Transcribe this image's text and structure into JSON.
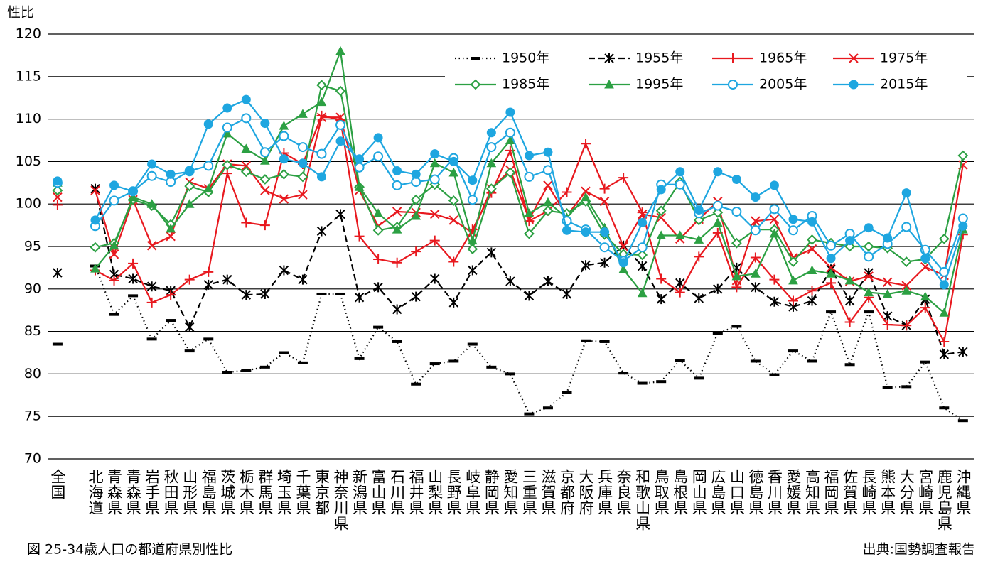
{
  "chart_data": {
    "type": "line",
    "ylabel": "性比",
    "caption": "図 25-34歳人口の都道府県別性比",
    "source": "出典:国勢調査報告",
    "categories": [
      "全国",
      null,
      "北海道",
      "青森県",
      "青森県",
      "岩手県",
      "秋田県",
      "山形県",
      "福島県",
      "茨城県",
      "栃木県",
      "群馬県",
      "埼玉県",
      "千葉県",
      "東京都",
      "神奈川県",
      "新潟県",
      "富山県",
      "石川県",
      "福井県",
      "山梨県",
      "長野県",
      "岐阜県",
      "静岡県",
      "愛知県",
      "三重県",
      "滋賀県",
      "京都府",
      "大阪府",
      "兵庫県",
      "奈良県",
      "和歌山県",
      "鳥取県",
      "島根県",
      "岡山県",
      "広島県",
      "山口県",
      "徳島県",
      "香川県",
      "愛媛県",
      "高知県",
      "福岡県",
      "佐賀県",
      "長崎県",
      "熊本県",
      "大分県",
      "宮崎県",
      "鹿児島県",
      "沖縄県"
    ],
    "ylim": [
      70,
      120
    ],
    "yticks": [
      70,
      75,
      80,
      85,
      90,
      95,
      100,
      105,
      110,
      115,
      120
    ],
    "grid": true,
    "legend": "upper right",
    "series": [
      {
        "name": "1950年",
        "color": "#000000",
        "linestyle": "dotted",
        "marker": "dash",
        "values": [
          83.5,
          null,
          92.7,
          87.0,
          89.2,
          84.1,
          86.3,
          82.7,
          84.1,
          80.2,
          80.4,
          80.8,
          82.5,
          81.3,
          89.4,
          89.4,
          81.8,
          85.5,
          83.8,
          78.8,
          81.2,
          81.5,
          83.5,
          80.8,
          80.0,
          75.3,
          76.0,
          77.8,
          83.9,
          83.8,
          80.1,
          78.9,
          79.1,
          81.6,
          79.5,
          84.8,
          85.6,
          81.5,
          79.9,
          82.7,
          81.5,
          87.3,
          81.1,
          87.3,
          78.4,
          78.5,
          81.4,
          76.0,
          74.5
        ]
      },
      {
        "name": "1955年",
        "color": "#000000",
        "linestyle": "dashed",
        "marker": "asterisk",
        "values": [
          91.9,
          null,
          101.8,
          91.7,
          91.2,
          90.3,
          89.8,
          85.5,
          90.5,
          91.1,
          89.3,
          89.4,
          92.2,
          91.1,
          96.8,
          98.8,
          89.0,
          90.2,
          87.6,
          89.1,
          91.2,
          88.4,
          92.2,
          94.3,
          90.9,
          89.2,
          90.9,
          89.4,
          92.8,
          93.1,
          95.1,
          92.7,
          88.8,
          90.7,
          88.9,
          90.0,
          92.5,
          90.2,
          88.5,
          87.9,
          88.6,
          92.3,
          88.6,
          91.9,
          86.8,
          85.7,
          88.8,
          82.3,
          82.6
        ]
      },
      {
        "name": "1965年",
        "color": "#e8191f",
        "linestyle": "solid",
        "marker": "plus",
        "values": [
          99.9,
          null,
          92.2,
          91.0,
          93.0,
          88.4,
          89.3,
          91.1,
          92.0,
          103.6,
          97.8,
          97.5,
          106.0,
          104.7,
          110.4,
          109.9,
          96.2,
          93.5,
          93.1,
          94.4,
          95.7,
          93.2,
          97.0,
          101.3,
          106.3,
          98.0,
          99.2,
          101.4,
          107.1,
          101.8,
          103.1,
          99.0,
          91.2,
          89.6,
          93.8,
          96.6,
          90.2,
          93.7,
          91.1,
          88.6,
          89.8,
          90.7,
          86.1,
          89.0,
          85.8,
          85.7,
          87.8,
          83.8,
          96.4
        ]
      },
      {
        "name": "1975年",
        "color": "#e8191f",
        "linestyle": "solid",
        "marker": "x",
        "values": [
          100.8,
          null,
          101.6,
          94.1,
          100.5,
          95.1,
          96.2,
          102.6,
          101.8,
          104.7,
          104.5,
          101.6,
          100.6,
          101.1,
          110.2,
          110.2,
          101.6,
          97.4,
          99.1,
          99.0,
          98.8,
          98.1,
          96.6,
          101.8,
          104.0,
          98.2,
          102.2,
          98.6,
          101.5,
          100.3,
          95.0,
          98.8,
          98.4,
          95.9,
          98.2,
          100.3,
          91.0,
          98.0,
          98.2,
          93.7,
          94.7,
          92.5,
          90.9,
          91.5,
          90.8,
          90.4,
          92.6,
          91.6,
          104.6
        ]
      },
      {
        "name": "1985年",
        "color": "#2ca043",
        "linestyle": "solid",
        "marker": "diamond-open",
        "values": [
          101.6,
          null,
          94.9,
          95.4,
          100.5,
          99.8,
          97.6,
          102.1,
          101.4,
          104.6,
          103.8,
          102.9,
          103.5,
          103.2,
          114.0,
          113.3,
          102.0,
          96.9,
          97.3,
          100.5,
          102.3,
          100.4,
          94.7,
          101.8,
          103.7,
          96.5,
          99.2,
          98.9,
          100.3,
          96.4,
          94.1,
          94.0,
          99.2,
          102.6,
          98.1,
          99.0,
          95.4,
          97.0,
          97.0,
          93.2,
          95.8,
          95.4,
          95.0,
          95.0,
          94.8,
          93.2,
          93.5,
          95.9,
          105.7
        ]
      },
      {
        "name": "1995年",
        "color": "#2ca043",
        "linestyle": "solid",
        "marker": "triangle",
        "values": [
          102.5,
          null,
          92.4,
          95.1,
          100.8,
          100.0,
          97.1,
          100.0,
          101.8,
          108.3,
          106.5,
          105.1,
          109.2,
          110.6,
          112.0,
          118.0,
          102.0,
          98.9,
          97.0,
          98.6,
          104.8,
          103.7,
          95.7,
          104.8,
          107.5,
          98.9,
          100.2,
          98.4,
          100.8,
          97.2,
          92.3,
          89.5,
          96.3,
          96.3,
          95.8,
          97.8,
          91.5,
          91.8,
          96.5,
          91.0,
          92.2,
          91.8,
          91.0,
          89.6,
          89.4,
          89.8,
          89.1,
          87.2,
          97.0
        ]
      },
      {
        "name": "2005年",
        "color": "#1ea6e0",
        "linestyle": "solid",
        "marker": "circle-open",
        "values": [
          102.5,
          null,
          97.4,
          100.4,
          101.5,
          103.3,
          102.6,
          103.9,
          104.5,
          109.0,
          110.1,
          106.1,
          108.0,
          106.7,
          105.9,
          109.3,
          104.3,
          105.6,
          102.2,
          102.6,
          102.9,
          105.4,
          100.5,
          106.7,
          108.4,
          103.2,
          104.0,
          98.0,
          97.0,
          94.9,
          93.3,
          94.9,
          102.3,
          102.3,
          98.9,
          99.8,
          99.1,
          96.9,
          99.4,
          96.9,
          98.6,
          95.1,
          96.5,
          93.8,
          95.3,
          97.3,
          94.6,
          92.0,
          98.3
        ]
      },
      {
        "name": "2015年",
        "color": "#1ea6e0",
        "linestyle": "solid",
        "marker": "circle",
        "values": [
          102.7,
          null,
          98.1,
          102.2,
          101.5,
          104.7,
          103.5,
          103.8,
          109.4,
          111.3,
          112.3,
          109.5,
          105.3,
          104.8,
          103.2,
          107.4,
          105.3,
          107.8,
          103.9,
          103.5,
          105.9,
          105.0,
          102.8,
          108.4,
          110.8,
          105.7,
          106.1,
          96.9,
          96.7,
          96.7,
          93.1,
          97.8,
          101.7,
          103.8,
          99.3,
          103.8,
          102.9,
          100.8,
          102.2,
          98.2,
          97.9,
          93.6,
          95.7,
          97.2,
          96.0,
          101.3,
          93.6,
          90.5,
          97.4
        ]
      }
    ]
  }
}
